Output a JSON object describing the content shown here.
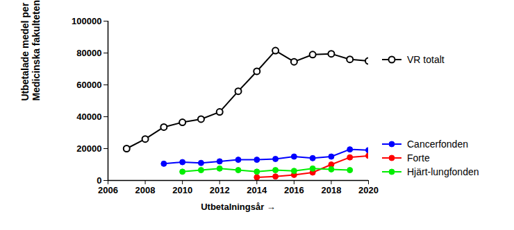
{
  "chart_data": {
    "type": "line",
    "xlabel": "Utbetalningsår",
    "ylabel": "Utbetalade medel per år till\nMedicinska fakulteten (tkr)",
    "x": [
      2007,
      2008,
      2009,
      2010,
      2011,
      2012,
      2013,
      2014,
      2015,
      2016,
      2017,
      2018,
      2019,
      2020
    ],
    "series": [
      {
        "name": "VR totalt",
        "color": "#000000",
        "marker": "circle-open",
        "values": [
          20000,
          26000,
          33500,
          36500,
          38500,
          43000,
          56000,
          68500,
          81500,
          74500,
          79000,
          79500,
          76000,
          75000
        ]
      },
      {
        "name": "Cancerfonden",
        "color": "#0000ff",
        "marker": "circle",
        "values": [
          null,
          null,
          10500,
          11500,
          11000,
          12000,
          13000,
          13000,
          13500,
          15000,
          14000,
          15000,
          19500,
          19000
        ]
      },
      {
        "name": "Forte",
        "color": "#ff0000",
        "marker": "circle",
        "values": [
          null,
          null,
          null,
          null,
          null,
          null,
          null,
          2000,
          2500,
          3500,
          5000,
          10000,
          14500,
          15500
        ]
      },
      {
        "name": "Hjärt-lungfonden",
        "color": "#00ee00",
        "marker": "circle",
        "values": [
          null,
          null,
          null,
          5500,
          6500,
          7500,
          6500,
          5500,
          6500,
          6000,
          7500,
          7000,
          6500,
          null
        ]
      }
    ],
    "xlim": [
      2006,
      2020
    ],
    "xticks": [
      2006,
      2008,
      2010,
      2012,
      2014,
      2016,
      2018,
      2020
    ],
    "ylim": [
      0,
      100000
    ],
    "yticks": [
      0,
      20000,
      40000,
      60000,
      80000,
      100000
    ],
    "grid": false,
    "legend": "right"
  }
}
